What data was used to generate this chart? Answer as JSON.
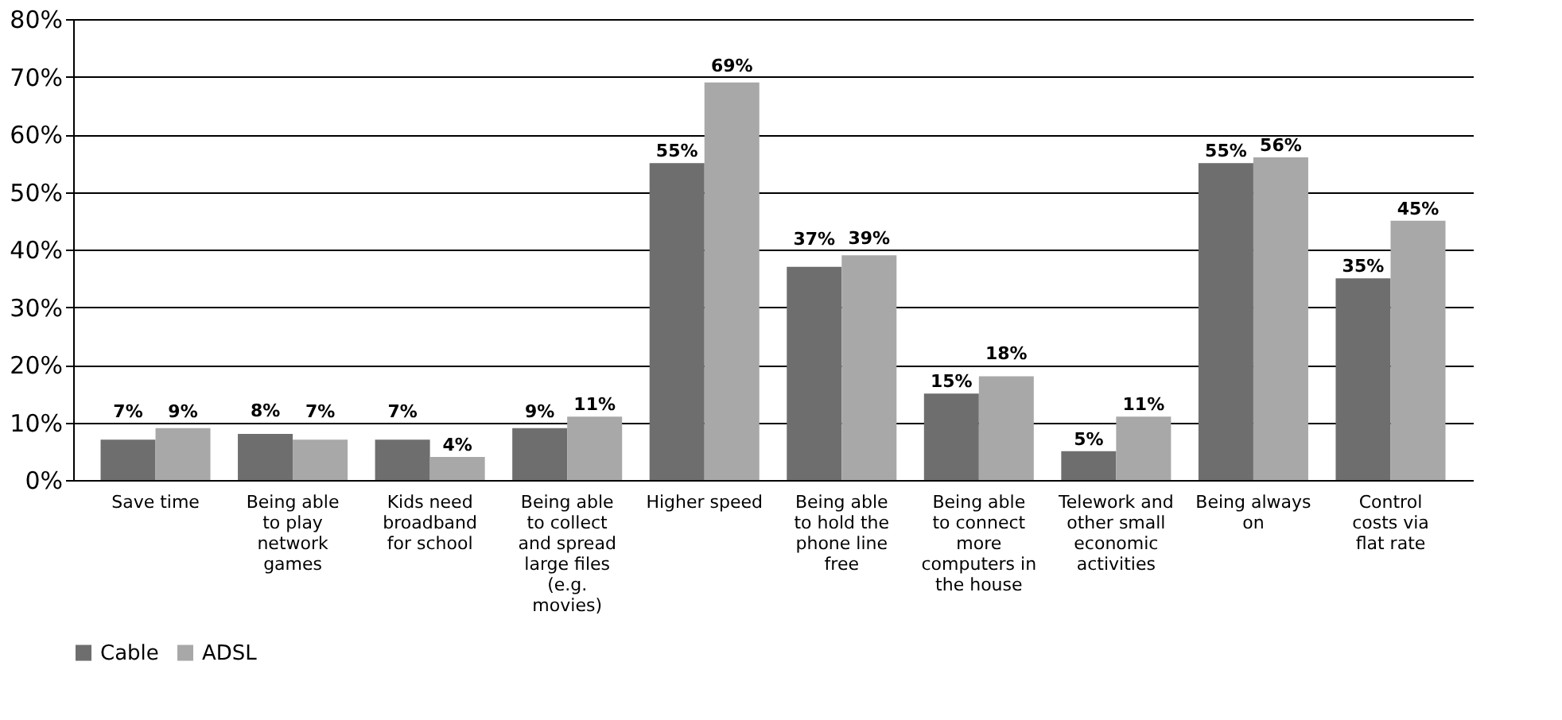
{
  "chart_data": {
    "type": "bar",
    "categories": [
      "Save time",
      "Being able to play network games",
      "Kids need broadband for school",
      "Being able to collect and spread large files (e.g. movies)",
      "Higher speed",
      "Being able to hold the phone line free",
      "Being able to connect more computers in the house",
      "Telework and other small economic activities",
      "Being always on",
      "Control costs via flat rate"
    ],
    "series": [
      {
        "name": "Cable",
        "color": "#6e6e6e",
        "values": [
          7,
          8,
          7,
          9,
          55,
          37,
          15,
          5,
          55,
          35
        ],
        "value_labels": [
          "7%",
          "8%",
          "7%",
          "9%",
          "55%",
          "37%",
          "15%",
          "5%",
          "55%",
          "35%"
        ]
      },
      {
        "name": "ADSL",
        "color": "#a8a8a8",
        "values": [
          9,
          7,
          4,
          11,
          69,
          39,
          18,
          11,
          56,
          45
        ],
        "value_labels": [
          "9%",
          "7%",
          "4%",
          "11%",
          "69%",
          "39%",
          "18%",
          "11%",
          "56%",
          "45%"
        ]
      }
    ],
    "ylim": [
      0,
      80
    ],
    "yticks": [
      {
        "value": 0,
        "label": "0%"
      },
      {
        "value": 10,
        "label": "10%"
      },
      {
        "value": 20,
        "label": "20%"
      },
      {
        "value": 30,
        "label": "30%"
      },
      {
        "value": 40,
        "label": "40%"
      },
      {
        "value": 50,
        "label": "50%"
      },
      {
        "value": 60,
        "label": "60%"
      },
      {
        "value": 70,
        "label": "70%"
      },
      {
        "value": 80,
        "label": "80%"
      }
    ],
    "grid": "y",
    "legend": "bottom"
  }
}
